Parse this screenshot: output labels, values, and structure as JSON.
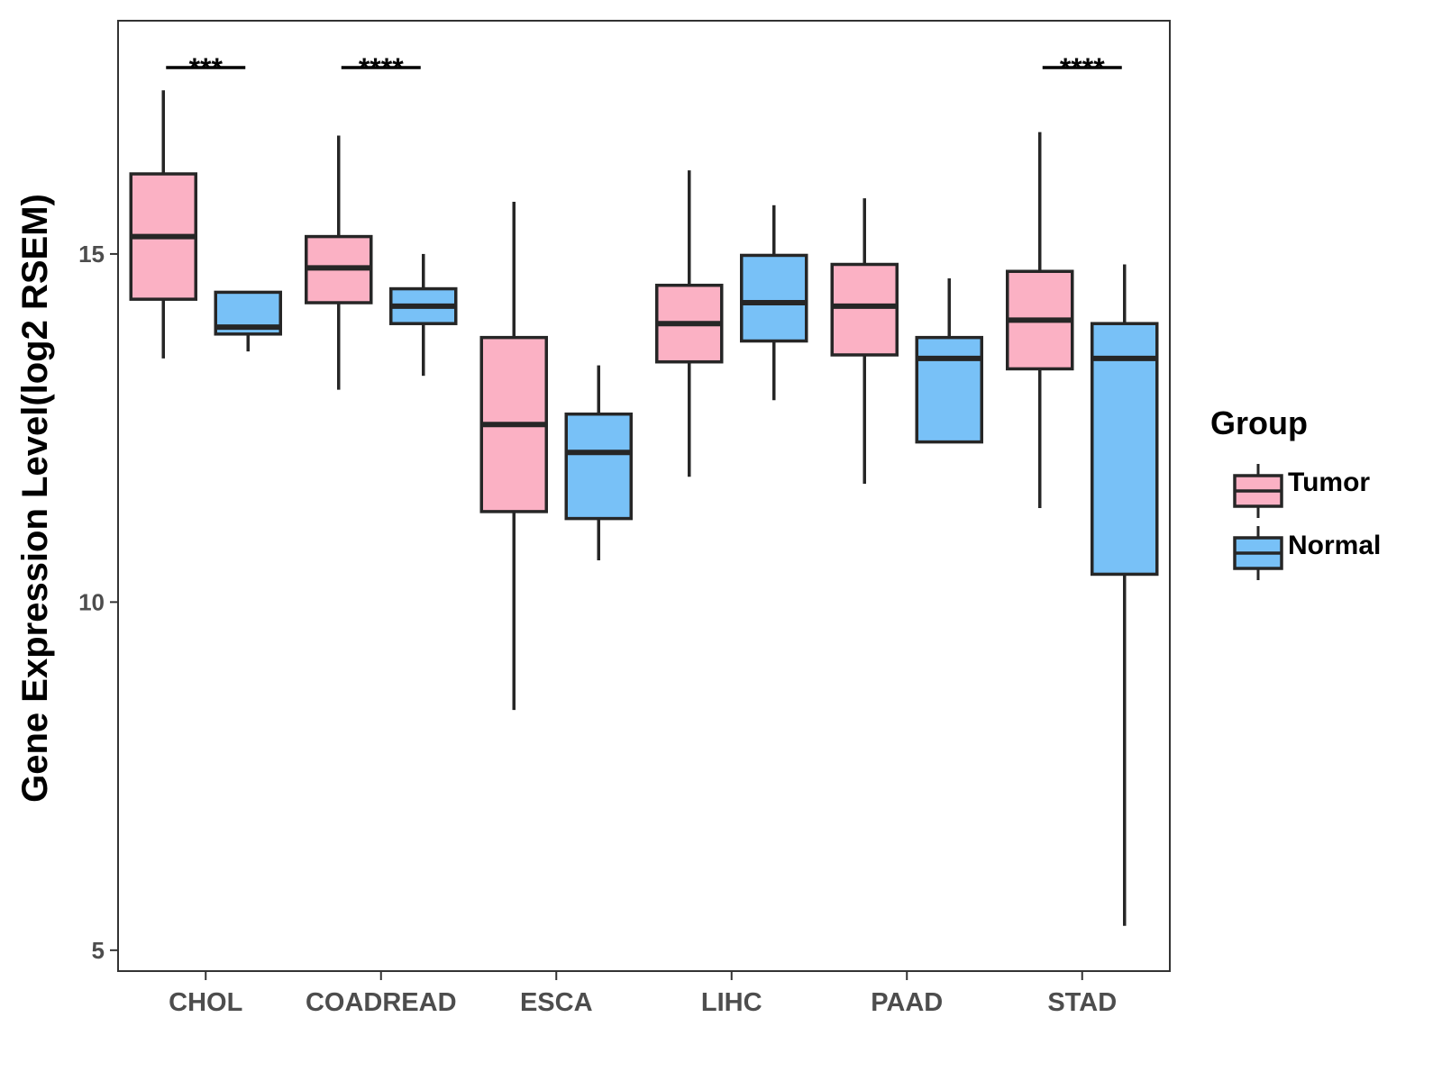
{
  "colors": {
    "tumor": "#FBB1C4",
    "normal": "#78C1F7",
    "outline": "#262626",
    "axis": "#333333"
  },
  "chart_data": {
    "type": "boxplot",
    "ylabel": "Gene Expression Level(log2 RSEM)",
    "xlabel": "",
    "ylim": [
      4.7,
      18.35
    ],
    "yticks": [
      5,
      10,
      15
    ],
    "categories": [
      "CHOL",
      "COADREAD",
      "ESCA",
      "LIHC",
      "PAAD",
      "STAD"
    ],
    "legend": {
      "title": "Group",
      "position": "right",
      "entries": [
        "Tumor",
        "Normal"
      ]
    },
    "series": [
      {
        "name": "Tumor",
        "boxes": [
          {
            "whisker_low": 13.5,
            "q1": 14.35,
            "median": 15.25,
            "q3": 16.15,
            "whisker_high": 17.35
          },
          {
            "whisker_low": 13.05,
            "q1": 14.3,
            "median": 14.8,
            "q3": 15.25,
            "whisker_high": 16.7
          },
          {
            "whisker_low": 8.45,
            "q1": 11.3,
            "median": 12.55,
            "q3": 13.8,
            "whisker_high": 15.75
          },
          {
            "whisker_low": 11.8,
            "q1": 13.45,
            "median": 14.0,
            "q3": 14.55,
            "whisker_high": 16.2
          },
          {
            "whisker_low": 11.7,
            "q1": 13.55,
            "median": 14.25,
            "q3": 14.85,
            "whisker_high": 15.8
          },
          {
            "whisker_low": 11.35,
            "q1": 13.35,
            "median": 14.05,
            "q3": 14.75,
            "whisker_high": 16.75
          }
        ]
      },
      {
        "name": "Normal",
        "boxes": [
          {
            "whisker_low": 13.6,
            "q1": 13.85,
            "median": 13.95,
            "q3": 14.45,
            "whisker_high": 14.45
          },
          {
            "whisker_low": 13.25,
            "q1": 14.0,
            "median": 14.25,
            "q3": 14.5,
            "whisker_high": 15.0
          },
          {
            "whisker_low": 10.6,
            "q1": 11.2,
            "median": 12.15,
            "q3": 12.7,
            "whisker_high": 13.4
          },
          {
            "whisker_low": 12.9,
            "q1": 13.75,
            "median": 14.3,
            "q3": 14.98,
            "whisker_high": 15.7
          },
          {
            "whisker_low": 12.3,
            "q1": 12.3,
            "median": 13.5,
            "q3": 13.8,
            "whisker_high": 14.65
          },
          {
            "whisker_low": 5.35,
            "q1": 10.4,
            "median": 13.5,
            "q3": 14.0,
            "whisker_high": 14.85
          }
        ]
      }
    ],
    "significance": [
      {
        "category": "CHOL",
        "label": "***"
      },
      {
        "category": "COADREAD",
        "label": "****"
      },
      {
        "category": "STAD",
        "label": "****"
      }
    ]
  }
}
